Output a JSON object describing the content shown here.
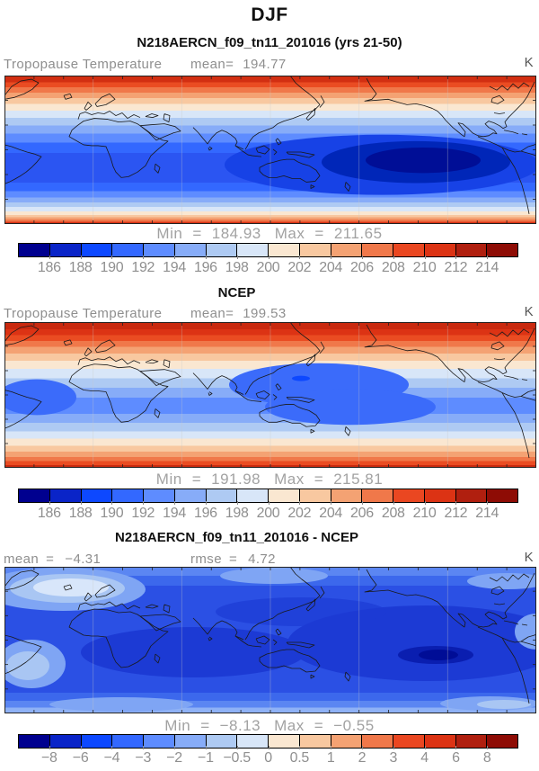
{
  "header": {
    "season_title": "DJF",
    "case_title": "N218AERCN_f09_tn11_201016 (yrs 21-50)"
  },
  "panels": {
    "model": {
      "field_label": "Tropopause Temperature",
      "mean_label": "mean=",
      "mean_value": "194.77",
      "units": "K",
      "min_label": "Min",
      "min_eq": "=",
      "min_value": "184.93",
      "max_label": "Max",
      "max_eq": "=",
      "max_value": "211.65"
    },
    "ncep": {
      "panel_title": "NCEP",
      "field_label": "Tropopause Temperature",
      "mean_label": "mean=",
      "mean_value": "199.53",
      "units": "K",
      "min_label": "Min",
      "min_eq": "=",
      "min_value": "191.98",
      "max_label": "Max",
      "max_eq": "=",
      "max_value": "215.81"
    },
    "diff": {
      "panel_title": "N218AERCN_f09_tn11_201016 - NCEP",
      "mean_label": "mean",
      "mean_eq": "=",
      "mean_value": "−4.31",
      "rmse_label": "rmse",
      "rmse_eq": "=",
      "rmse_value": "4.72",
      "units": "K",
      "min_label": "Min",
      "min_eq": "=",
      "min_value": "−8.13",
      "max_label": "Max",
      "max_eq": "=",
      "max_value": "−0.55"
    }
  },
  "colorbars": {
    "temp": {
      "labels": [
        "186",
        "188",
        "190",
        "192",
        "194",
        "196",
        "198",
        "200",
        "202",
        "204",
        "206",
        "208",
        "210",
        "212",
        "214"
      ],
      "colors": [
        "#00008F",
        "#0A24C8",
        "#0D48FF",
        "#3368FF",
        "#5E8CFF",
        "#87ACF8",
        "#AECAF3",
        "#D8E6F8",
        "#FAE7D1",
        "#F8C8A0",
        "#F4A273",
        "#F0784A",
        "#EA4721",
        "#DC3314",
        "#B01F0F",
        "#8E0C05"
      ]
    },
    "diff": {
      "labels": [
        "−8",
        "−6",
        "−4",
        "−3",
        "−2",
        "−1",
        "−0.5",
        "0",
        "0.5",
        "1",
        "2",
        "3",
        "4",
        "6",
        "8"
      ],
      "colors": [
        "#00008F",
        "#0A24C8",
        "#0D48FF",
        "#3368FF",
        "#5E8CFF",
        "#87ACF8",
        "#AECAF3",
        "#D8E6F8",
        "#FAE7D1",
        "#F8C8A0",
        "#F4A273",
        "#F0784A",
        "#EA4721",
        "#DC3314",
        "#B01F0F",
        "#8E0C05"
      ]
    }
  },
  "chart_data": [
    {
      "type": "heatmap",
      "subtype": "global-filled-contour-map",
      "season": "DJF",
      "title": "N218AERCN_f09_tn11_201016 (yrs 21-50)",
      "variable": "Tropopause Temperature",
      "units": "K",
      "mean": 194.77,
      "min": 184.93,
      "max": 211.65,
      "contour_levels": [
        186,
        188,
        190,
        192,
        194,
        196,
        198,
        200,
        202,
        204,
        206,
        208,
        210,
        212,
        214
      ],
      "legend_position": "bottom colorbar, 16 bins",
      "spatial_pattern": "warm 204-212 K bands at high latitudes (red), cold 186-194 K tropical band (blue), coldest core ~185 K over the western tropical Pacific"
    },
    {
      "type": "heatmap",
      "subtype": "global-filled-contour-map",
      "season": "DJF",
      "title": "NCEP",
      "variable": "Tropopause Temperature",
      "units": "K",
      "mean": 199.53,
      "min": 191.98,
      "max": 215.81,
      "contour_levels": [
        186,
        188,
        190,
        192,
        194,
        196,
        198,
        200,
        202,
        204,
        206,
        208,
        210,
        212,
        214
      ],
      "legend_position": "bottom colorbar, 16 bins",
      "spatial_pattern": "warm 206-216 K bands at high latitudes, moderate cold 192-198 K tropical band, coldest over western tropical Pacific and tropical Atlantic"
    },
    {
      "type": "heatmap",
      "subtype": "global-filled-contour-difference-map",
      "season": "DJF",
      "title": "N218AERCN_f09_tn11_201016 - NCEP",
      "variable": "Tropopause Temperature difference",
      "units": "K",
      "mean": -4.31,
      "rmse": 4.72,
      "min": -8.13,
      "max": -0.55,
      "contour_levels": [
        -8,
        -6,
        -4,
        -3,
        -2,
        -1,
        -0.5,
        0,
        0.5,
        1,
        2,
        3,
        4,
        6,
        8
      ],
      "legend_position": "bottom colorbar, 16 bins",
      "spatial_pattern": "negative everywhere (all blue); strongest bias -6 to -8 K over tropical Africa, Indian Ocean and central Pacific; weakest -0.5 to -2 K over NW Africa/Atlantic, South America and southern high latitudes"
    }
  ]
}
